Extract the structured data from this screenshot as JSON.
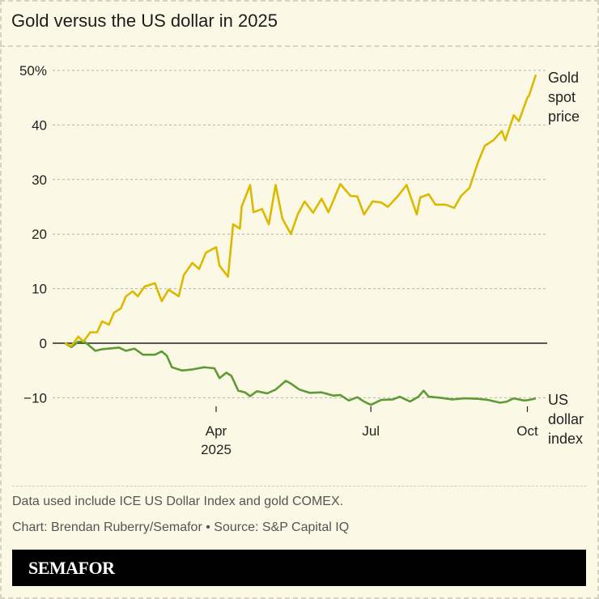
{
  "title": "Gold versus the US dollar in 2025",
  "notes": {
    "data": "Data used include ICE US Dollar Index and gold COMEX.",
    "credit": "Chart: Brendan Ruberry/Semafor • Source: S&P Capital IQ"
  },
  "brand": "SEMAFOR",
  "chart_data": {
    "type": "line",
    "title": "Gold versus the US dollar in 2025",
    "ylim": [
      -12,
      50
    ],
    "yticks": [
      {
        "v": 50,
        "label": "50%"
      },
      {
        "v": 40,
        "label": "40"
      },
      {
        "v": 30,
        "label": "30"
      },
      {
        "v": 20,
        "label": "20"
      },
      {
        "v": 10,
        "label": "10"
      },
      {
        "v": 0,
        "label": "0"
      },
      {
        "v": -10,
        "label": "−10"
      }
    ],
    "xlim": [
      "2025-01-02",
      "2025-10-06"
    ],
    "xticks": [
      {
        "date": "2025-04-01",
        "label": "Apr",
        "sublabel": "2025"
      },
      {
        "date": "2025-07-01",
        "label": "Jul"
      },
      {
        "date": "2025-10-01",
        "label": "Oct"
      }
    ],
    "grid": true,
    "series": [
      {
        "name": "Gold spot price",
        "color": "#dcb800",
        "points": [
          [
            "2025-01-02",
            0
          ],
          [
            "2025-01-06",
            -0.5
          ],
          [
            "2025-01-10",
            1.2
          ],
          [
            "2025-01-13",
            0.3
          ],
          [
            "2025-01-17",
            2
          ],
          [
            "2025-01-21",
            2
          ],
          [
            "2025-01-24",
            4
          ],
          [
            "2025-01-28",
            3.4
          ],
          [
            "2025-01-31",
            5.6
          ],
          [
            "2025-02-04",
            6.4
          ],
          [
            "2025-02-07",
            8.6
          ],
          [
            "2025-02-11",
            9.5
          ],
          [
            "2025-02-14",
            8.6
          ],
          [
            "2025-02-18",
            10.4
          ],
          [
            "2025-02-24",
            11
          ],
          [
            "2025-02-28",
            7.7
          ],
          [
            "2025-03-04",
            9.8
          ],
          [
            "2025-03-10",
            8.6
          ],
          [
            "2025-03-13",
            12.5
          ],
          [
            "2025-03-18",
            14.7
          ],
          [
            "2025-03-22",
            13.6
          ],
          [
            "2025-03-26",
            16.6
          ],
          [
            "2025-04-01",
            17.6
          ],
          [
            "2025-04-03",
            14.2
          ],
          [
            "2025-04-08",
            12.2
          ],
          [
            "2025-04-11",
            21.8
          ],
          [
            "2025-04-15",
            21
          ],
          [
            "2025-04-16",
            25
          ],
          [
            "2025-04-21",
            29
          ],
          [
            "2025-04-23",
            24
          ],
          [
            "2025-04-28",
            24.6
          ],
          [
            "2025-05-02",
            21.8
          ],
          [
            "2025-05-06",
            29
          ],
          [
            "2025-05-10",
            22.8
          ],
          [
            "2025-05-15",
            20
          ],
          [
            "2025-05-19",
            23.6
          ],
          [
            "2025-05-23",
            26
          ],
          [
            "2025-05-28",
            23.9
          ],
          [
            "2025-06-02",
            26.5
          ],
          [
            "2025-06-06",
            24
          ],
          [
            "2025-06-13",
            29.2
          ],
          [
            "2025-06-19",
            27
          ],
          [
            "2025-06-23",
            26.9
          ],
          [
            "2025-06-27",
            23.6
          ],
          [
            "2025-07-02",
            26
          ],
          [
            "2025-07-07",
            25.8
          ],
          [
            "2025-07-11",
            25
          ],
          [
            "2025-07-17",
            27
          ],
          [
            "2025-07-22",
            29
          ],
          [
            "2025-07-28",
            23.6
          ],
          [
            "2025-07-30",
            26.7
          ],
          [
            "2025-08-04",
            27.3
          ],
          [
            "2025-08-08",
            25.4
          ],
          [
            "2025-08-14",
            25.4
          ],
          [
            "2025-08-19",
            24.8
          ],
          [
            "2025-08-23",
            27
          ],
          [
            "2025-08-28",
            28.5
          ],
          [
            "2025-09-02",
            33.2
          ],
          [
            "2025-09-06",
            36.2
          ],
          [
            "2025-09-11",
            37.2
          ],
          [
            "2025-09-16",
            38.9
          ],
          [
            "2025-09-18",
            37.2
          ],
          [
            "2025-09-23",
            41.8
          ],
          [
            "2025-09-26",
            40.7
          ],
          [
            "2025-10-01",
            45
          ],
          [
            "2025-10-02",
            45.4
          ],
          [
            "2025-10-06",
            49.2
          ]
        ]
      },
      {
        "name": "US dollar index",
        "color": "#5e9a35",
        "points": [
          [
            "2025-01-02",
            0
          ],
          [
            "2025-01-06",
            -0.7
          ],
          [
            "2025-01-10",
            0.3
          ],
          [
            "2025-01-14",
            0.2
          ],
          [
            "2025-01-20",
            -1.4
          ],
          [
            "2025-01-24",
            -1.1
          ],
          [
            "2025-02-03",
            -0.8
          ],
          [
            "2025-02-07",
            -1.4
          ],
          [
            "2025-02-12",
            -1.0
          ],
          [
            "2025-02-17",
            -2.1
          ],
          [
            "2025-02-24",
            -2.1
          ],
          [
            "2025-02-28",
            -1.5
          ],
          [
            "2025-03-03",
            -2.3
          ],
          [
            "2025-03-06",
            -4.4
          ],
          [
            "2025-03-12",
            -5.0
          ],
          [
            "2025-03-18",
            -4.8
          ],
          [
            "2025-03-25",
            -4.4
          ],
          [
            "2025-03-31",
            -4.6
          ],
          [
            "2025-04-03",
            -6.4
          ],
          [
            "2025-04-07",
            -5.4
          ],
          [
            "2025-04-10",
            -6
          ],
          [
            "2025-04-14",
            -8.7
          ],
          [
            "2025-04-18",
            -9
          ],
          [
            "2025-04-21",
            -9.7
          ],
          [
            "2025-04-25",
            -8.8
          ],
          [
            "2025-05-01",
            -9.2
          ],
          [
            "2025-05-06",
            -8.5
          ],
          [
            "2025-05-12",
            -6.9
          ],
          [
            "2025-05-15",
            -7.4
          ],
          [
            "2025-05-20",
            -8.5
          ],
          [
            "2025-05-26",
            -9.1
          ],
          [
            "2025-06-02",
            -9.0
          ],
          [
            "2025-06-09",
            -9.6
          ],
          [
            "2025-06-13",
            -9.5
          ],
          [
            "2025-06-18",
            -10.5
          ],
          [
            "2025-06-23",
            -9.9
          ],
          [
            "2025-06-27",
            -10.7
          ],
          [
            "2025-07-01",
            -11.3
          ],
          [
            "2025-07-07",
            -10.4
          ],
          [
            "2025-07-14",
            -10.3
          ],
          [
            "2025-07-18",
            -9.8
          ],
          [
            "2025-07-24",
            -10.7
          ],
          [
            "2025-07-29",
            -9.8
          ],
          [
            "2025-08-01",
            -8.7
          ],
          [
            "2025-08-04",
            -9.8
          ],
          [
            "2025-08-11",
            -10.0
          ],
          [
            "2025-08-18",
            -10.3
          ],
          [
            "2025-08-25",
            -10.1
          ],
          [
            "2025-09-02",
            -10.2
          ],
          [
            "2025-09-08",
            -10.4
          ],
          [
            "2025-09-15",
            -10.9
          ],
          [
            "2025-09-19",
            -10.7
          ],
          [
            "2025-09-23",
            -10.1
          ],
          [
            "2025-09-29",
            -10.5
          ],
          [
            "2025-10-02",
            -10.4
          ],
          [
            "2025-10-06",
            -10.1
          ]
        ]
      }
    ],
    "labels": [
      {
        "series": 0,
        "lines": [
          "Gold",
          "spot",
          "price"
        ]
      },
      {
        "series": 1,
        "lines": [
          "US",
          "dollar",
          "index"
        ]
      }
    ]
  }
}
